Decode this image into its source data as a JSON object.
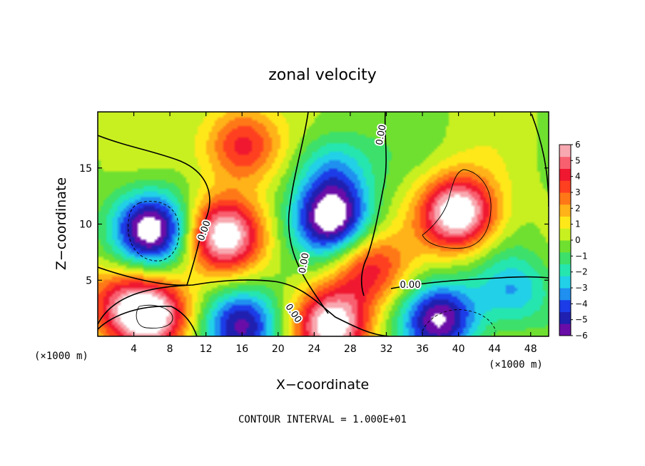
{
  "chart_data": {
    "type": "heatmap",
    "title": "zonal velocity",
    "xlabel": "X−coordinate",
    "ylabel": "Z−coordinate",
    "x_unit_label": "(×1000 m)",
    "y_unit_label": "(×1000 m)",
    "xlim": [
      0,
      50
    ],
    "ylim": [
      0,
      20
    ],
    "x_ticks": [
      4,
      8,
      12,
      16,
      20,
      24,
      28,
      32,
      36,
      40,
      44,
      48
    ],
    "y_ticks": [
      5,
      10,
      15
    ],
    "colorbar": {
      "min": -6,
      "max": 6,
      "tick_labels": [
        "6",
        "5",
        "4",
        "3",
        "2",
        "1",
        "0",
        "−1",
        "−2",
        "−3",
        "−4",
        "−5",
        "−6"
      ],
      "colors": [
        "#6a0da8",
        "#2020b0",
        "#1c3ce8",
        "#1f8ff0",
        "#22d0e8",
        "#26e6b0",
        "#3de06a",
        "#6fe030",
        "#c8f020",
        "#ffe81a",
        "#ffb318",
        "#ff7818",
        "#ff4020",
        "#f01830",
        "#f86070",
        "#f8a8b0"
      ]
    },
    "contour_label": "0.00",
    "contour_interval_text": "CONTOUR INTERVAL = 1.000E+01",
    "features": [
      {
        "x": 6,
        "z": 9.5,
        "value": -6.5
      },
      {
        "x": 6,
        "z": 2,
        "value": 6.5
      },
      {
        "x": 14,
        "z": 9,
        "value": 6.5
      },
      {
        "x": 16,
        "z": 1,
        "value": -5
      },
      {
        "x": 26,
        "z": 10.5,
        "value": -6.5
      },
      {
        "x": 26,
        "z": 1,
        "value": 6.5
      },
      {
        "x": 30,
        "z": 6,
        "value": 4
      },
      {
        "x": 40,
        "z": 11,
        "value": 7.5
      },
      {
        "x": 38,
        "z": 1.5,
        "value": -6
      },
      {
        "x": 16,
        "z": 17,
        "value": 4.5
      },
      {
        "x": 26,
        "z": 15,
        "value": -3
      },
      {
        "x": 46,
        "z": 4,
        "value": -3
      },
      {
        "x": 2,
        "z": 3,
        "value": 3
      }
    ]
  }
}
